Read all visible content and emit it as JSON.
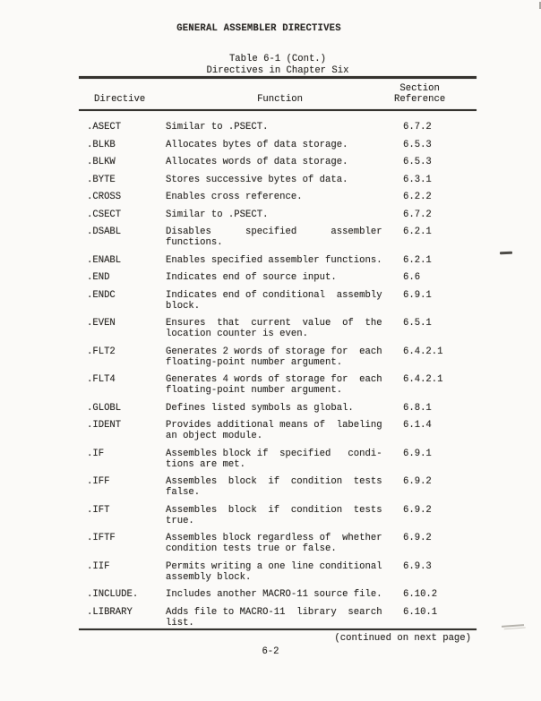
{
  "page": {
    "title": "GENERAL ASSEMBLER DIRECTIVES",
    "caption_line1": "Table 6-1 (Cont.)",
    "caption_line2": "Directives in Chapter Six",
    "footer_note": "(continued on next page)",
    "page_number": "6-2"
  },
  "table": {
    "header": {
      "directive": "Directive",
      "function": "Function",
      "section": " Section\nReference"
    },
    "rows": [
      {
        "directive": ".ASECT",
        "function": "Similar to .PSECT.",
        "section": "6.7.2"
      },
      {
        "directive": ".BLKB",
        "function": "Allocates bytes of data storage.",
        "section": "6.5.3"
      },
      {
        "directive": ".BLKW",
        "function": "Allocates words of data storage.",
        "section": "6.5.3"
      },
      {
        "directive": ".BYTE",
        "function": "Stores successive bytes of data.",
        "section": "6.3.1"
      },
      {
        "directive": ".CROSS",
        "function": "Enables cross reference.",
        "section": "6.2.2"
      },
      {
        "directive": ".CSECT",
        "function": "Similar to .PSECT.",
        "section": "6.7.2"
      },
      {
        "directive": ".DSABL",
        "function": "Disables      specified      assembler\nfunctions.",
        "section": "6.2.1"
      },
      {
        "directive": ".ENABL",
        "function": "Enables specified assembler functions.",
        "section": "6.2.1"
      },
      {
        "directive": ".END",
        "function": "Indicates end of source input.",
        "section": "6.6"
      },
      {
        "directive": ".ENDC",
        "function": "Indicates end of conditional  assembly\nblock.",
        "section": "6.9.1"
      },
      {
        "directive": ".EVEN",
        "function": "Ensures  that  current  value  of  the\nlocation counter is even.",
        "section": "6.5.1"
      },
      {
        "directive": ".FLT2",
        "function": "Generates 2 words of storage for  each\nfloating-point number argument.",
        "section": "6.4.2.1"
      },
      {
        "directive": ".FLT4",
        "function": "Generates 4 words of storage for  each\nfloating-point number argument.",
        "section": "6.4.2.1"
      },
      {
        "directive": ".GLOBL",
        "function": "Defines listed symbols as global.",
        "section": "6.8.1"
      },
      {
        "directive": ".IDENT",
        "function": "Provides additional means of  labeling\nan object module.",
        "section": "6.1.4"
      },
      {
        "directive": ".IF",
        "function": "Assembles block if  specified   condi-\ntions are met.",
        "section": "6.9.1"
      },
      {
        "directive": ".IFF",
        "function": "Assembles  block  if  condition  tests\nfalse.",
        "section": "6.9.2"
      },
      {
        "directive": ".IFT",
        "function": "Assembles  block  if  condition  tests\ntrue.",
        "section": "6.9.2"
      },
      {
        "directive": ".IFTF",
        "function": "Assembles block regardless of  whether\ncondition tests true or false.",
        "section": "6.9.2"
      },
      {
        "directive": ".IIF",
        "function": "Permits writing a one line conditional\nassembly block.",
        "section": "6.9.3"
      },
      {
        "directive": ".INCLUDE.",
        "function": "Includes another MACRO-11 source file.",
        "section": "6.10.2"
      },
      {
        "directive": ".LIBRARY",
        "function": "Adds file to MACRO-11  library  search\nlist.",
        "section": "6.10.1"
      }
    ]
  },
  "colors": {
    "paper": "#fbfaf8",
    "ink": "#2d2b28",
    "rule": "#35332f"
  }
}
